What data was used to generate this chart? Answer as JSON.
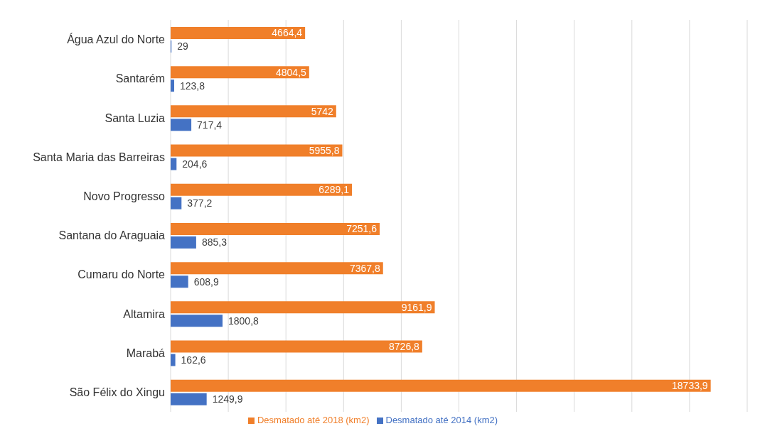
{
  "chart_data": {
    "type": "bar",
    "orientation": "horizontal",
    "categories": [
      "Água Azul do Norte",
      "Santarém",
      "Santa Luzia",
      "Santa Maria das Barreiras",
      "Novo Progresso",
      "Santana do Araguaia",
      "Cumaru do Norte",
      "Altamira",
      "Marabá",
      "São Félix do Xingu"
    ],
    "series": [
      {
        "name": "Desmatado até 2018 (km2)",
        "color": "#f07f2a",
        "values": [
          4664.4,
          4804.5,
          5742,
          5955.8,
          6289.1,
          7251.6,
          7367.8,
          9161.9,
          8726.8,
          18733.9
        ],
        "value_labels": [
          "4664,4",
          "4804,5",
          "5742",
          "5955,8",
          "6289,1",
          "7251,6",
          "7367,8",
          "9161,9",
          "8726,8",
          "18733,9"
        ]
      },
      {
        "name": "Desmatado até 2014 (km2)",
        "color": "#4472c4",
        "values": [
          29,
          123.8,
          717.4,
          204.6,
          377.2,
          885.3,
          608.9,
          1800.8,
          162.6,
          1249.9
        ],
        "value_labels": [
          "29",
          "123,8",
          "717,4",
          "204,6",
          "377,2",
          "885,3",
          "608,9",
          "1800,8",
          "162,6",
          "1249,9"
        ]
      }
    ],
    "tick_labels": "y",
    "grid": "x",
    "legend": "bottom"
  }
}
